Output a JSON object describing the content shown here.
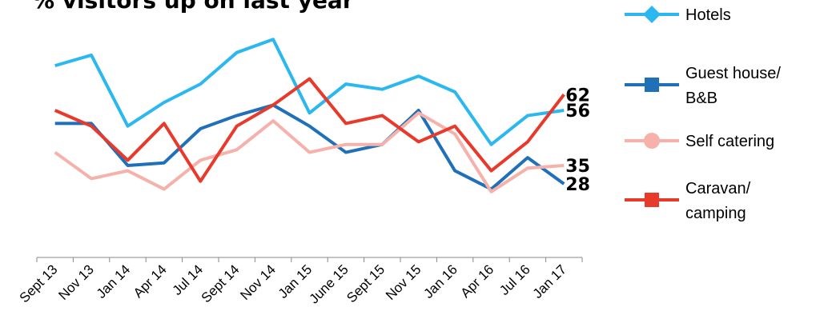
{
  "chart_data": {
    "type": "line",
    "title": "% visitors up on last year",
    "categories": [
      "Sept 13",
      "Nov 13",
      "Jan 14",
      "Apr 14",
      "Jul 14",
      "Sept 14",
      "Nov 14",
      "Jan 15",
      "June 15",
      "Sept 15",
      "Nov 15",
      "Jan 16",
      "Apr 16",
      "Jul 16",
      "Jan 17"
    ],
    "series": [
      {
        "name": "Hotels",
        "color": "#2bb8f0",
        "marker": "diamond",
        "values": [
          73,
          77,
          50,
          59,
          66,
          78,
          83,
          55,
          66,
          64,
          69,
          63,
          43,
          54,
          56
        ]
      },
      {
        "name": "Guest house/\nB&B",
        "color": "#1f70b9",
        "marker": "square",
        "values": [
          51,
          51,
          35,
          36,
          49,
          54,
          58,
          50,
          40,
          43,
          56,
          33,
          26,
          38,
          28
        ]
      },
      {
        "name": "Self catering",
        "color": "#f5b1aa",
        "marker": "circle",
        "values": [
          40,
          30,
          33,
          26,
          37,
          41,
          52,
          40,
          43,
          43,
          55,
          47,
          25,
          34,
          35
        ]
      },
      {
        "name": "Caravan/\ncamping",
        "color": "#e8392b",
        "marker": "square",
        "values": [
          56,
          50,
          37,
          51,
          29,
          50,
          58,
          68,
          51,
          54,
          44,
          50,
          33,
          44,
          62
        ]
      }
    ]
  }
}
